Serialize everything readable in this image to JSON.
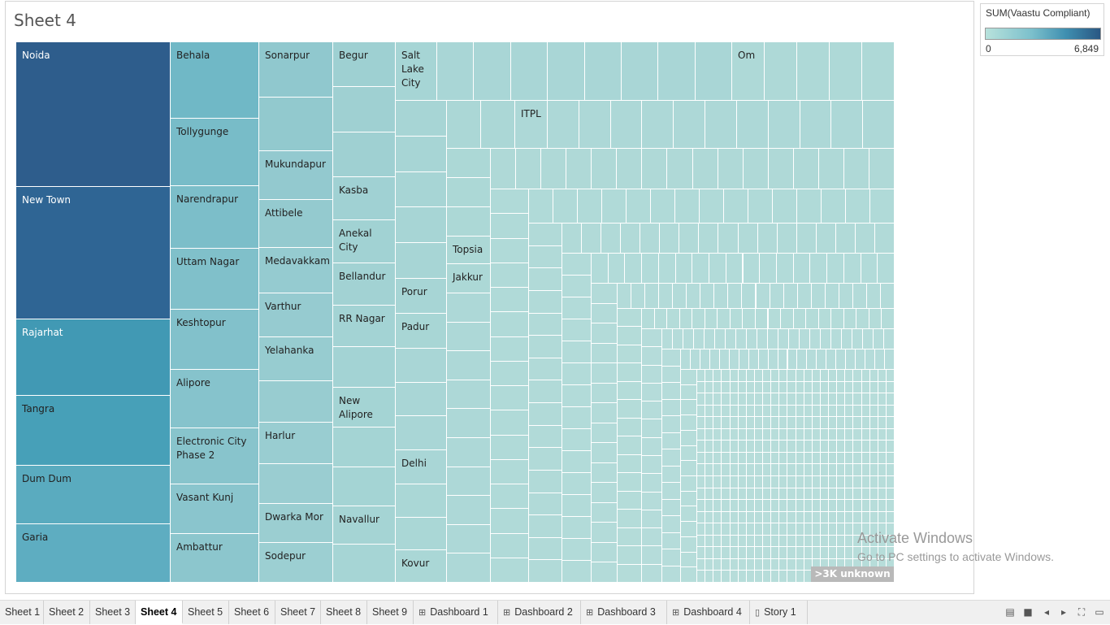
{
  "sheet": {
    "title": "Sheet 4"
  },
  "legend": {
    "title": "SUM(Vaastu Compliant)",
    "min": "0",
    "max": "6,849",
    "color_low": "#b8e2dc",
    "color_high": "#2a5783"
  },
  "treemap": {
    "measure": "SUM(Vaastu Compliant)",
    "labeled_cells": [
      {
        "label": "Noida",
        "color": "#2e5d8c",
        "text_color": "#ffffff"
      },
      {
        "label": "New Town",
        "color": "#2f6594",
        "text_color": "#ffffff"
      },
      {
        "label": "Rajarhat",
        "color": "#4199b4",
        "text_color": "#ffffff"
      },
      {
        "label": "Tangra",
        "color": "#47a0b8",
        "text_color": "#222222"
      },
      {
        "label": "Dum Dum",
        "color": "#5aabbf",
        "text_color": "#222222"
      },
      {
        "label": "Garia",
        "color": "#5eadc1",
        "text_color": "#222222"
      },
      {
        "label": "Behala",
        "color": "#70b8c6",
        "text_color": "#222222"
      },
      {
        "label": "Tollygunge",
        "color": "#78bcc8",
        "text_color": "#222222"
      },
      {
        "label": "Narendrapur",
        "color": "#7cbec9",
        "text_color": "#222222"
      },
      {
        "label": "Uttam Nagar",
        "color": "#80c0ca",
        "text_color": "#222222"
      },
      {
        "label": "Keshtopur",
        "color": "#82c1cb",
        "text_color": "#222222"
      },
      {
        "label": "Alipore",
        "color": "#86c3cc",
        "text_color": "#222222"
      },
      {
        "label": "Electronic City\nPhase 2",
        "color": "#88c4cc",
        "text_color": "#222222"
      },
      {
        "label": "Vasant Kunj",
        "color": "#8ac5cd",
        "text_color": "#222222"
      },
      {
        "label": "Ambattur",
        "color": "#8cc6cd",
        "text_color": "#222222"
      },
      {
        "label": "Sonarpur",
        "color": "#90c8ce",
        "text_color": "#222222"
      },
      {
        "label": "Mukundapur",
        "color": "#93c9cf",
        "text_color": "#222222"
      },
      {
        "label": "Attibele",
        "color": "#94cacf",
        "text_color": "#222222"
      },
      {
        "label": "Medavakkam",
        "color": "#95cbd0",
        "text_color": "#222222"
      },
      {
        "label": "Varthur",
        "color": "#96cbd0",
        "text_color": "#222222"
      },
      {
        "label": "Yelahanka",
        "color": "#97ccd0",
        "text_color": "#222222"
      },
      {
        "label": "Harlur",
        "color": "#99cdd1",
        "text_color": "#222222"
      },
      {
        "label": "Dwarka Mor",
        "color": "#9bced1",
        "text_color": "#222222"
      },
      {
        "label": "Sodepur",
        "color": "#9ccfd2",
        "text_color": "#222222"
      },
      {
        "label": "Begur",
        "color": "#9ed0d2",
        "text_color": "#222222"
      },
      {
        "label": "Kasba",
        "color": "#a0d1d3",
        "text_color": "#222222"
      },
      {
        "label": "Anekal\nCity",
        "color": "#a1d2d3",
        "text_color": "#222222"
      },
      {
        "label": "Bellandur",
        "color": "#a2d2d3",
        "text_color": "#222222"
      },
      {
        "label": "RR Nagar",
        "color": "#a3d3d4",
        "text_color": "#222222"
      },
      {
        "label": "New\nAlipore",
        "color": "#a4d4d4",
        "text_color": "#222222"
      },
      {
        "label": "Navallur",
        "color": "#a5d4d4",
        "text_color": "#222222"
      },
      {
        "label": "Salt\nLake\nCity",
        "color": "#a6d5d5",
        "text_color": "#222222"
      },
      {
        "label": "Porur",
        "color": "#a7d5d5",
        "text_color": "#222222"
      },
      {
        "label": "Padur",
        "color": "#a8d6d5",
        "text_color": "#222222"
      },
      {
        "label": "Delhi",
        "color": "#a9d6d6",
        "text_color": "#222222"
      },
      {
        "label": "Kovur",
        "color": "#aad7d6",
        "text_color": "#222222"
      },
      {
        "label": "Topsia",
        "color": "#acd8d6",
        "text_color": "#222222"
      },
      {
        "label": "Jakkur",
        "color": "#acd8d6",
        "text_color": "#222222"
      },
      {
        "label": "ITPL",
        "color": "#add8d7",
        "text_color": "#222222"
      },
      {
        "label": "Om",
        "color": "#aed9d7",
        "text_color": "#222222"
      }
    ],
    "unknown_badge": ">3K unknown"
  },
  "watermark": {
    "line1": "Activate Windows",
    "line2": "Go to PC settings to activate Windows."
  },
  "tabs": [
    {
      "label": "Sheet 1",
      "icon": ""
    },
    {
      "label": "Sheet 2",
      "icon": ""
    },
    {
      "label": "Sheet 3",
      "icon": ""
    },
    {
      "label": "Sheet 4",
      "icon": "",
      "active": true
    },
    {
      "label": "Sheet 5",
      "icon": ""
    },
    {
      "label": "Sheet 6",
      "icon": ""
    },
    {
      "label": "Sheet 7",
      "icon": ""
    },
    {
      "label": "Sheet 8",
      "icon": ""
    },
    {
      "label": "Sheet 9",
      "icon": ""
    },
    {
      "label": "Dashboard 1",
      "icon": "dashboard-icon"
    },
    {
      "label": "Dashboard 2",
      "icon": "dashboard-icon"
    },
    {
      "label": "Dashboard 3",
      "icon": "dashboard-icon"
    },
    {
      "label": "Dashboard 4",
      "icon": "dashboard-icon"
    },
    {
      "label": "Story 1",
      "icon": "story-icon"
    }
  ],
  "controls": [
    "filmstrip-icon",
    "tabs-icon",
    "prev-sheet-icon",
    "next-sheet-icon",
    "fit-icon",
    "presentation-icon"
  ]
}
